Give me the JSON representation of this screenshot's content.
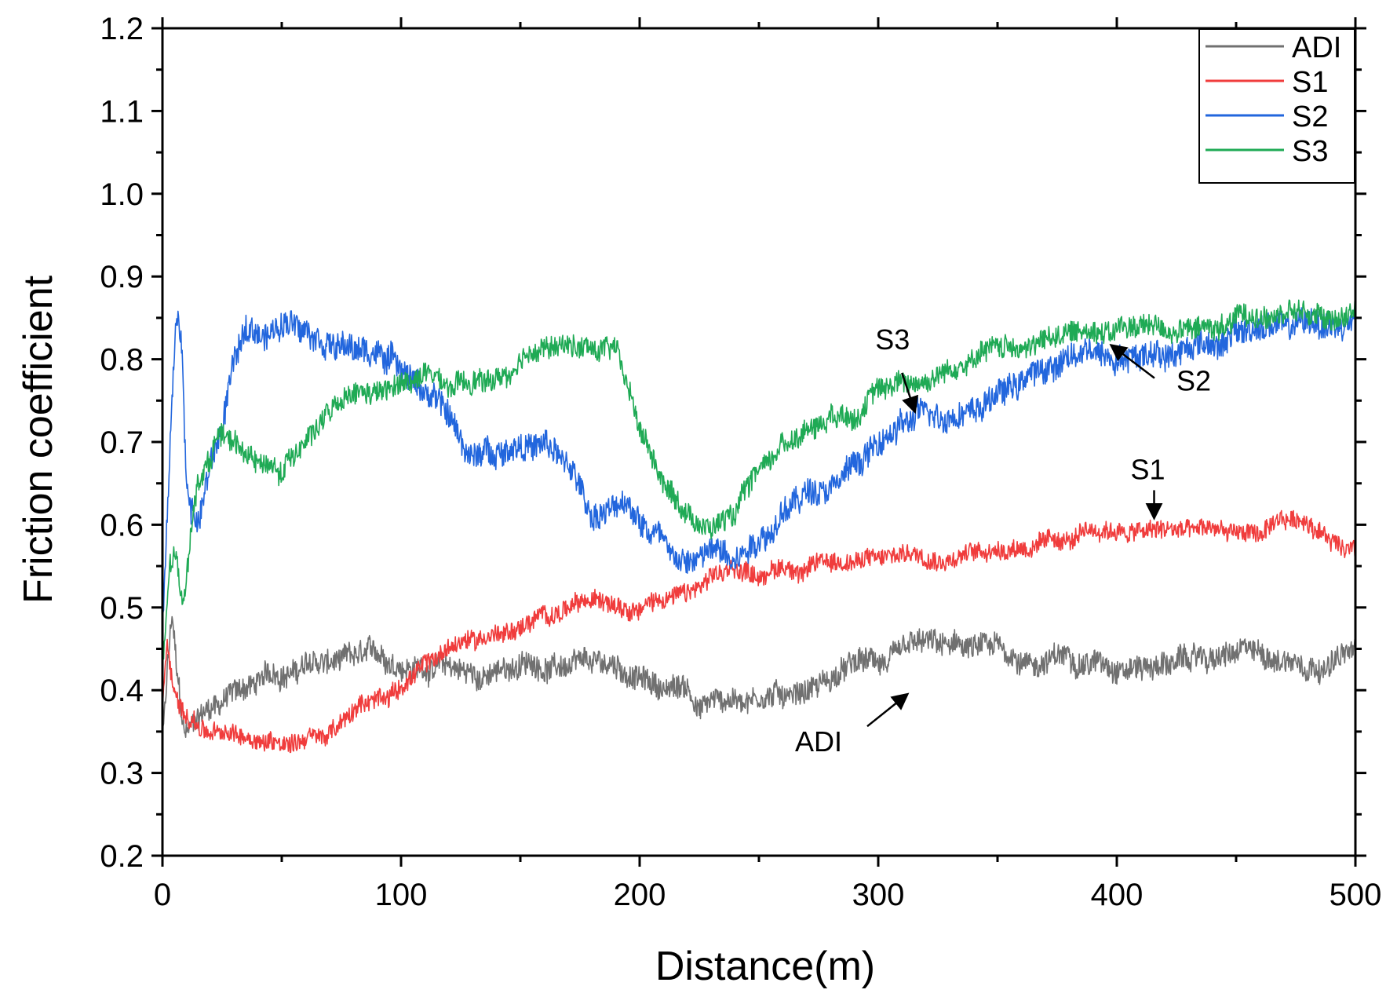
{
  "chart_data": {
    "type": "line",
    "title": "",
    "xlabel": "Distance(m)",
    "ylabel": "Friction coefficient",
    "xlim": [
      0,
      500
    ],
    "ylim": [
      0.2,
      1.2
    ],
    "xticks": [
      0,
      100,
      200,
      300,
      400,
      500
    ],
    "xtick_labels": [
      "0",
      "100",
      "200",
      "300",
      "400",
      "500"
    ],
    "yticks": [
      0.2,
      0.3,
      0.4,
      0.5,
      0.6,
      0.7,
      0.8,
      0.9,
      1.0,
      1.1,
      1.2
    ],
    "ytick_labels": [
      "0.2",
      "0.3",
      "0.4",
      "0.5",
      "0.6",
      "0.7",
      "0.8",
      "0.9",
      "1.0",
      "1.1",
      "1.2"
    ],
    "legend_position": "top-right",
    "series": [
      {
        "name": "ADI",
        "color": "#707070",
        "noise": 0.014,
        "x": [
          0,
          2,
          4,
          6,
          9,
          12,
          16,
          20,
          30,
          40,
          50,
          60,
          70,
          80,
          90,
          100,
          110,
          120,
          130,
          140,
          150,
          160,
          170,
          180,
          190,
          200,
          210,
          220,
          225,
          230,
          240,
          250,
          260,
          270,
          280,
          290,
          300,
          320,
          340,
          350,
          360,
          380,
          400,
          420,
          440,
          460,
          480,
          500
        ],
        "y": [
          0.33,
          0.42,
          0.49,
          0.42,
          0.34,
          0.35,
          0.37,
          0.38,
          0.4,
          0.41,
          0.42,
          0.43,
          0.43,
          0.43,
          0.43,
          0.43,
          0.43,
          0.43,
          0.42,
          0.42,
          0.43,
          0.43,
          0.43,
          0.42,
          0.42,
          0.41,
          0.4,
          0.4,
          0.38,
          0.39,
          0.39,
          0.4,
          0.4,
          0.41,
          0.42,
          0.43,
          0.43,
          0.44,
          0.44,
          0.44,
          0.43,
          0.44,
          0.44,
          0.44,
          0.44,
          0.44,
          0.44,
          0.45
        ]
      },
      {
        "name": "S1",
        "color": "#f03c3c",
        "noise": 0.011,
        "x": [
          0,
          2,
          5,
          10,
          15,
          20,
          30,
          40,
          50,
          60,
          70,
          80,
          90,
          100,
          110,
          120,
          130,
          140,
          150,
          160,
          170,
          180,
          190,
          200,
          210,
          220,
          230,
          240,
          250,
          260,
          270,
          280,
          290,
          300,
          320,
          340,
          360,
          380,
          400,
          410,
          420,
          440,
          460,
          480,
          490,
          500
        ],
        "y": [
          0.38,
          0.46,
          0.4,
          0.37,
          0.36,
          0.35,
          0.34,
          0.34,
          0.34,
          0.35,
          0.35,
          0.37,
          0.39,
          0.41,
          0.43,
          0.45,
          0.46,
          0.47,
          0.48,
          0.49,
          0.5,
          0.5,
          0.51,
          0.51,
          0.52,
          0.52,
          0.53,
          0.54,
          0.54,
          0.55,
          0.55,
          0.56,
          0.56,
          0.56,
          0.57,
          0.57,
          0.58,
          0.58,
          0.59,
          0.59,
          0.59,
          0.59,
          0.59,
          0.6,
          0.58,
          0.58
        ]
      },
      {
        "name": "S2",
        "color": "#2266dd",
        "noise": 0.016,
        "x": [
          0,
          2,
          4,
          6,
          8,
          10,
          12,
          15,
          20,
          25,
          30,
          35,
          40,
          50,
          60,
          70,
          80,
          90,
          100,
          110,
          120,
          130,
          140,
          150,
          160,
          170,
          180,
          190,
          200,
          210,
          220,
          230,
          240,
          250,
          260,
          270,
          280,
          290,
          300,
          320,
          340,
          360,
          380,
          400,
          420,
          440,
          460,
          480,
          500
        ],
        "y": [
          0.48,
          0.6,
          0.75,
          0.85,
          0.82,
          0.66,
          0.62,
          0.6,
          0.67,
          0.72,
          0.8,
          0.83,
          0.83,
          0.84,
          0.85,
          0.84,
          0.82,
          0.81,
          0.8,
          0.77,
          0.73,
          0.68,
          0.69,
          0.71,
          0.7,
          0.67,
          0.61,
          0.62,
          0.6,
          0.59,
          0.56,
          0.57,
          0.57,
          0.6,
          0.62,
          0.64,
          0.66,
          0.68,
          0.7,
          0.73,
          0.75,
          0.78,
          0.8,
          0.81,
          0.82,
          0.83,
          0.84,
          0.84,
          0.84
        ]
      },
      {
        "name": "S3",
        "color": "#1faa55",
        "noise": 0.013,
        "x": [
          0,
          3,
          6,
          8,
          10,
          12,
          15,
          20,
          25,
          30,
          40,
          50,
          60,
          70,
          80,
          90,
          100,
          110,
          120,
          130,
          140,
          150,
          160,
          170,
          180,
          190,
          200,
          210,
          220,
          230,
          240,
          250,
          260,
          270,
          280,
          290,
          300,
          310,
          320,
          330,
          340,
          360,
          380,
          400,
          420,
          440,
          460,
          480,
          500
        ],
        "y": [
          0.42,
          0.55,
          0.56,
          0.5,
          0.52,
          0.6,
          0.65,
          0.68,
          0.72,
          0.7,
          0.68,
          0.66,
          0.71,
          0.74,
          0.75,
          0.75,
          0.76,
          0.78,
          0.76,
          0.76,
          0.77,
          0.78,
          0.81,
          0.81,
          0.81,
          0.82,
          0.72,
          0.66,
          0.62,
          0.6,
          0.62,
          0.67,
          0.7,
          0.72,
          0.74,
          0.75,
          0.77,
          0.78,
          0.78,
          0.79,
          0.8,
          0.82,
          0.83,
          0.84,
          0.84,
          0.84,
          0.85,
          0.85,
          0.86
        ]
      }
    ],
    "annotations": [
      {
        "text": "S3",
        "x": 306,
        "y": 0.812
      },
      {
        "text": "S2",
        "x": 425,
        "y": 0.762
      },
      {
        "text": "S1",
        "x": 413,
        "y": 0.655
      },
      {
        "text": "ADI",
        "x": 275,
        "y": 0.326
      }
    ]
  }
}
